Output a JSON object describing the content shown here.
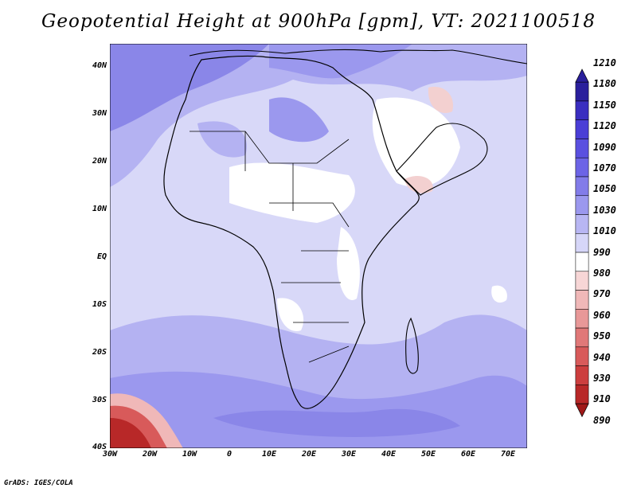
{
  "title": "Geopotential Height at 900hPa [gpm], VT: 2021100518",
  "footer": "GrADS: IGES/COLA",
  "map": {
    "lat_labels": [
      "40N",
      "30N",
      "20N",
      "10N",
      "EQ",
      "10S",
      "20S",
      "30S",
      "40S"
    ],
    "lon_labels": [
      "30W",
      "20W",
      "10W",
      "0",
      "10E",
      "20E",
      "30E",
      "40E",
      "50E",
      "60E",
      "70E"
    ]
  },
  "colorbar": {
    "levels": [
      "1210",
      "1180",
      "1150",
      "1120",
      "1090",
      "1070",
      "1050",
      "1030",
      "1010",
      "990",
      "980",
      "970",
      "960",
      "950",
      "940",
      "930",
      "910",
      "890"
    ],
    "colors": [
      "#2a1f9c",
      "#3a2ec0",
      "#4a3ed6",
      "#5a50e0",
      "#6c64e6",
      "#827ce9",
      "#9b98ee",
      "#b8b6f3",
      "#d6d6f8",
      "#ffffff",
      "#f7d6d6",
      "#f0b8b8",
      "#e89898",
      "#e07878",
      "#d85a5a",
      "#cc3e3e",
      "#b82828",
      "#a01818"
    ]
  },
  "colors": {
    "high_dark": "#6560dc",
    "mid_blue": "#8a86e8",
    "light_blue": "#b4b2f2",
    "pale_blue": "#d8d8f8",
    "low_red": "#b42222",
    "coast": "#000000"
  }
}
